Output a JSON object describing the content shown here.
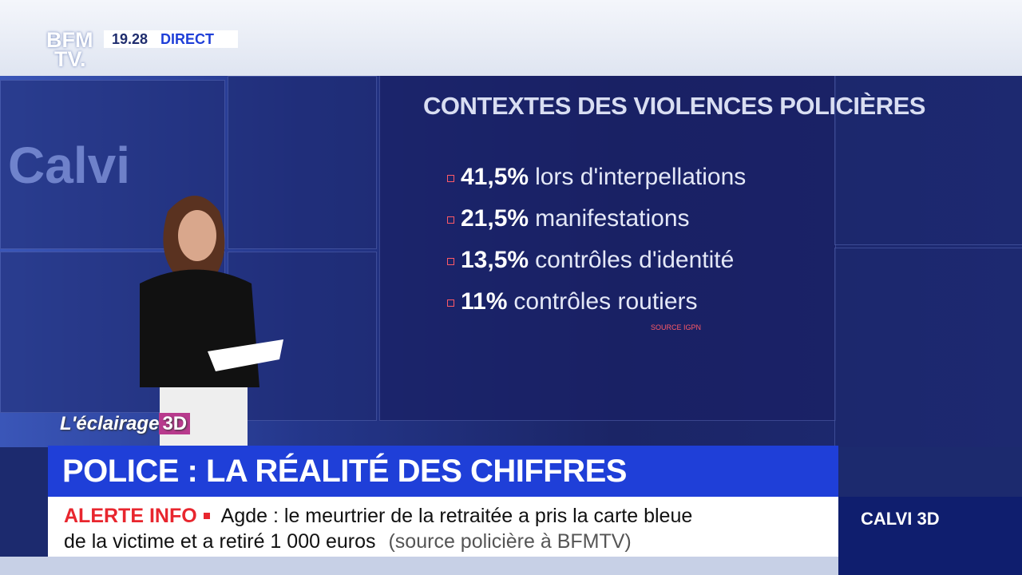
{
  "header": {
    "logo_line1": "BFM",
    "logo_line2": "TV.",
    "time": "19.28",
    "live": "DIRECT"
  },
  "background_text": "Calvi",
  "screen": {
    "title": "CONTEXTES DES VIOLENCES POLICIÈRES",
    "items": [
      {
        "value": "41,5%",
        "label": "lors d'interpellations"
      },
      {
        "value": "21,5%",
        "label": "manifestations"
      },
      {
        "value": "13,5%",
        "label": "contrôles d'identité"
      },
      {
        "value": "11%",
        "label": "contrôles routiers"
      }
    ],
    "source": "SOURCE IGPN"
  },
  "segment": {
    "name": "L'éclairage",
    "badge": "3D"
  },
  "headline": "POLICE : LA RÉALITÉ DES CHIFFRES",
  "ticker": {
    "tag": "ALERTE INFO",
    "line1": "Agde : le meurtrier de la retraitée a pris la carte bleue",
    "line2": "de la victime et a retiré 1 000 euros",
    "source": "(source policière à BFMTV)"
  },
  "program": "CALVI 3D"
}
